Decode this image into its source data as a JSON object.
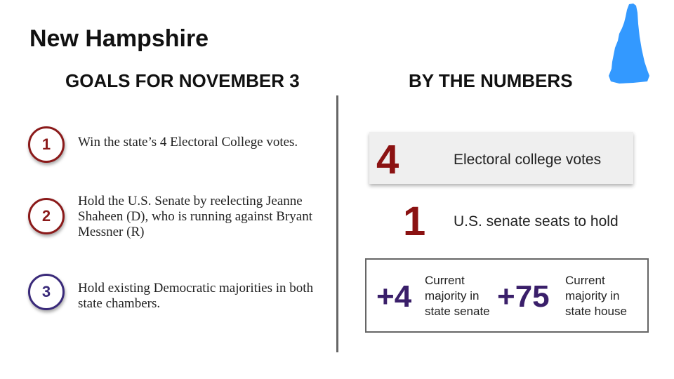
{
  "title": "New Hampshire",
  "colors": {
    "red": "#8b1212",
    "purple": "#3a1f6a",
    "state_blue": "#3399ff"
  },
  "goals": {
    "heading": "GOALS FOR NOVEMBER 3",
    "items": [
      {
        "number": "1",
        "text": "Win the state’s 4 Electoral College votes."
      },
      {
        "number": "2",
        "text": "Hold the U.S. Senate by reelecting Jeanne Shaheen (D), who is running against Bryant Messner (R)"
      },
      {
        "number": "3",
        "text": "Hold existing Democratic majorities in both state chambers."
      }
    ]
  },
  "numbers": {
    "heading": "BY THE NUMBERS",
    "electoral": {
      "value": "4",
      "label": "Electoral college votes"
    },
    "senate_seats": {
      "value": "1",
      "label": "U.S. senate seats to hold"
    },
    "majorities": [
      {
        "value": "+4",
        "label": "Current majority in state senate"
      },
      {
        "value": "+75",
        "label": "Current majority in state house"
      }
    ]
  }
}
